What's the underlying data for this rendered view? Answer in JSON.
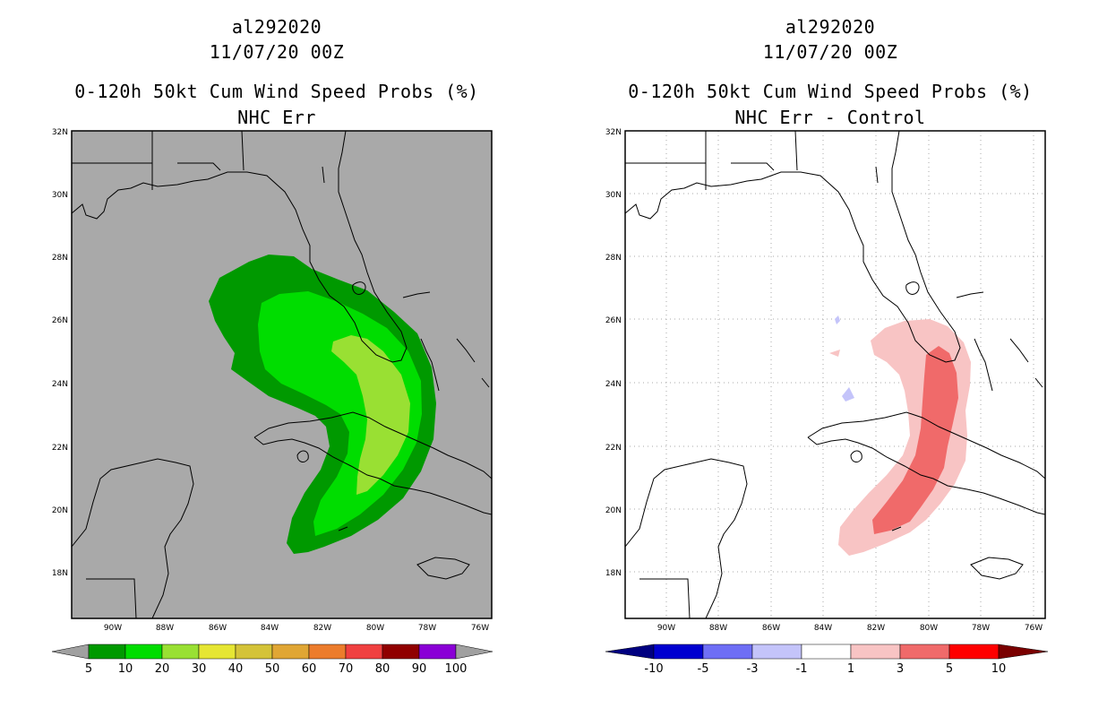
{
  "figure": {
    "storm_id": "al292020",
    "datetime": "11/07/20 00Z"
  },
  "panels": [
    {
      "id": "left",
      "title_line1": "al292020",
      "title_line2": "11/07/20 00Z",
      "title_line3": "0-120h 50kt Cum Wind Speed Probs (%)",
      "title_line4": "NHC Err",
      "background_color": "#a9a9a9",
      "gridlines": false,
      "lat_labels": [
        "32N",
        "30N",
        "28N",
        "26N",
        "24N",
        "22N",
        "20N",
        "18N"
      ],
      "lon_labels": [
        "90W",
        "88W",
        "86W",
        "84W",
        "82W",
        "80W",
        "78W",
        "76W"
      ],
      "colorbar": {
        "labels": [
          "5",
          "10",
          "20",
          "30",
          "40",
          "50",
          "60",
          "70",
          "80",
          "90",
          "100"
        ],
        "colors": [
          "#009900",
          "#00dd00",
          "#99e033",
          "#e6e633",
          "#d4c338",
          "#e0a634",
          "#ec7c2c",
          "#f04040",
          "#900000",
          "#8a00d6"
        ],
        "end_color": "#a0a0a0"
      }
    },
    {
      "id": "right",
      "title_line1": "al292020",
      "title_line2": "11/07/20 00Z",
      "title_line3": "0-120h 50kt Cum Wind Speed Probs (%)",
      "title_line4": "NHC Err - Control",
      "background_color": "#ffffff",
      "gridlines": true,
      "lat_labels": [
        "32N",
        "30N",
        "28N",
        "26N",
        "24N",
        "22N",
        "20N",
        "18N"
      ],
      "lon_labels": [
        "90W",
        "88W",
        "86W",
        "84W",
        "82W",
        "80W",
        "78W",
        "76W"
      ],
      "colorbar": {
        "labels": [
          "-10",
          "-5",
          "-3",
          "-1",
          "1",
          "3",
          "5",
          "10"
        ],
        "colors": [
          "#0000d0",
          "#6e6ef5",
          "#c4c4fa",
          "#ffffff",
          "#f8c4c4",
          "#f06a6a",
          "#ff0000"
        ],
        "low_end_color": "#000080",
        "high_end_color": "#7a0000"
      }
    }
  ]
}
